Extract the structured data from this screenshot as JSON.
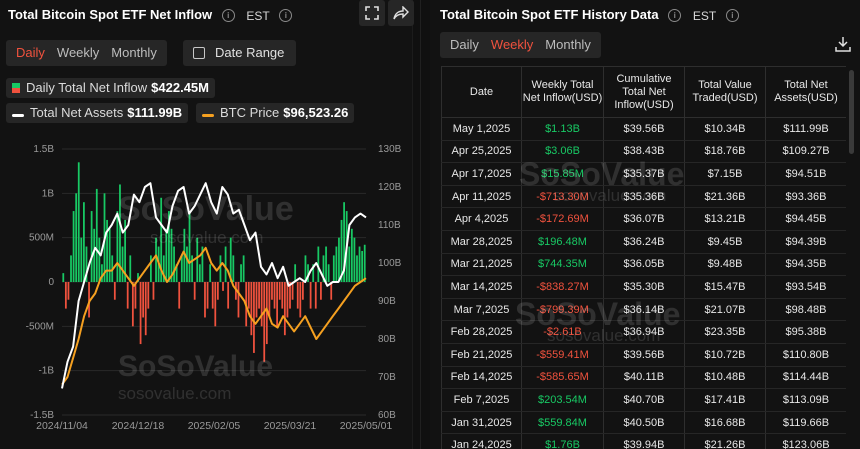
{
  "left": {
    "title": "Total Bitcoin Spot ETF Net Inflow",
    "timezone": "EST",
    "tabs": [
      "Daily",
      "Weekly",
      "Monthly"
    ],
    "active_tab": "Daily",
    "date_range_label": "Date Range",
    "legend": {
      "inflow_label": "Daily Total Net Inflow",
      "inflow_value": "$422.45M",
      "assets_label": "Total Net Assets",
      "assets_value": "$111.99B",
      "btc_label": "BTC Price",
      "btc_value": "$96,523.26"
    },
    "icons": [
      "expand-icon",
      "share-icon",
      "info-icon"
    ]
  },
  "right": {
    "title": "Total Bitcoin Spot ETF History Data",
    "timezone": "EST",
    "tabs": [
      "Daily",
      "Weekly",
      "Monthly"
    ],
    "active_tab": "Weekly",
    "headers": [
      "Date",
      "Weekly Total Net Inflow(USD)",
      "Cumulative Total Net Inflow(USD)",
      "Total Value Traded(USD)",
      "Total Net Assets(USD)"
    ],
    "rows": [
      {
        "date": "May 1,2025",
        "inflow": "$1.13B",
        "sign": "pos",
        "cumulative": "$39.56B",
        "traded": "$10.34B",
        "assets": "$111.99B"
      },
      {
        "date": "Apr 25,2025",
        "inflow": "$3.06B",
        "sign": "pos",
        "cumulative": "$38.43B",
        "traded": "$18.76B",
        "assets": "$109.27B"
      },
      {
        "date": "Apr 17,2025",
        "inflow": "$15.85M",
        "sign": "pos",
        "cumulative": "$35.37B",
        "traded": "$7.15B",
        "assets": "$94.51B"
      },
      {
        "date": "Apr 11,2025",
        "inflow": "-$713.30M",
        "sign": "neg",
        "cumulative": "$35.36B",
        "traded": "$21.36B",
        "assets": "$93.36B"
      },
      {
        "date": "Apr 4,2025",
        "inflow": "-$172.69M",
        "sign": "neg",
        "cumulative": "$36.07B",
        "traded": "$13.21B",
        "assets": "$94.45B"
      },
      {
        "date": "Mar 28,2025",
        "inflow": "$196.48M",
        "sign": "pos",
        "cumulative": "$36.24B",
        "traded": "$9.45B",
        "assets": "$94.39B"
      },
      {
        "date": "Mar 21,2025",
        "inflow": "$744.35M",
        "sign": "pos",
        "cumulative": "$36.05B",
        "traded": "$9.48B",
        "assets": "$94.35B"
      },
      {
        "date": "Mar 14,2025",
        "inflow": "-$838.27M",
        "sign": "neg",
        "cumulative": "$35.30B",
        "traded": "$15.47B",
        "assets": "$93.54B"
      },
      {
        "date": "Mar 7,2025",
        "inflow": "-$799.39M",
        "sign": "neg",
        "cumulative": "$36.14B",
        "traded": "$21.07B",
        "assets": "$98.48B"
      },
      {
        "date": "Feb 28,2025",
        "inflow": "-$2.61B",
        "sign": "neg",
        "cumulative": "$36.94B",
        "traded": "$23.35B",
        "assets": "$95.38B"
      },
      {
        "date": "Feb 21,2025",
        "inflow": "-$559.41M",
        "sign": "neg",
        "cumulative": "$39.56B",
        "traded": "$10.72B",
        "assets": "$110.80B"
      },
      {
        "date": "Feb 14,2025",
        "inflow": "-$585.65M",
        "sign": "neg",
        "cumulative": "$40.11B",
        "traded": "$10.48B",
        "assets": "$114.44B"
      },
      {
        "date": "Feb 7,2025",
        "inflow": "$203.54M",
        "sign": "pos",
        "cumulative": "$40.70B",
        "traded": "$17.41B",
        "assets": "$113.09B"
      },
      {
        "date": "Jan 31,2025",
        "inflow": "$559.84M",
        "sign": "pos",
        "cumulative": "$40.50B",
        "traded": "$16.68B",
        "assets": "$119.66B"
      },
      {
        "date": "Jan 24,2025",
        "inflow": "$1.76B",
        "sign": "pos",
        "cumulative": "$39.94B",
        "traded": "$21.26B",
        "assets": "$123.06B"
      }
    ]
  },
  "watermark": {
    "brand": "SoSoValue",
    "site": "sosovalue.com"
  },
  "colors": {
    "positive": "#18c964",
    "negative": "#f0523e",
    "assets_line": "#ffffff",
    "btc_line": "#f5a020",
    "accent": "#f0523e"
  },
  "chart_data": {
    "type": "bar",
    "title": "Total Bitcoin Spot ETF Net Inflow",
    "x_ticks": [
      "2024/11/04",
      "2024/12/18",
      "2025/02/05",
      "2025/03/21",
      "2025/05/01"
    ],
    "y_left_ticks": [
      "1.5B",
      "1B",
      "500M",
      "0",
      "-500M",
      "-1B",
      "-1.5B"
    ],
    "y_right_ticks": [
      "130B",
      "120B",
      "110B",
      "100B",
      "90B",
      "80B",
      "70B",
      "60B"
    ],
    "ylim_left": [
      -1.5,
      1.5
    ],
    "ylim_right": [
      60,
      130
    ],
    "inflow_values": [
      0.1,
      -0.3,
      -0.2,
      0.3,
      0.8,
      1.0,
      1.35,
      0.5,
      0.9,
      0.4,
      -0.4,
      0.8,
      0.6,
      1.05,
      0.5,
      0.2,
      1.0,
      0.7,
      0.6,
      0.3,
      -0.2,
      0.8,
      1.1,
      0.4,
      0.7,
      -0.3,
      0.3,
      -0.5,
      -0.3,
      0.1,
      -0.7,
      -0.4,
      -0.6,
      -0.3,
      0.3,
      -0.2,
      0.5,
      0.4,
      0.95,
      0.3,
      0.6,
      0.8,
      0.6,
      0.4,
      0.2,
      -0.3,
      0.3,
      0.6,
      0.4,
      0.8,
      0.3,
      -0.2,
      0.5,
      0.2,
      0.4,
      -0.4,
      -0.3,
      0.2,
      -0.3,
      -0.5,
      -0.2,
      0.3,
      -0.1,
      0.4,
      -0.3,
      0.5,
      0.3,
      -0.2,
      -0.4,
      0.2,
      0.3,
      -0.5,
      -0.3,
      -0.6,
      -0.8,
      -0.4,
      -0.3,
      -0.5,
      -0.9,
      -0.7,
      -0.4,
      -0.2,
      -0.3,
      -0.5,
      -0.2,
      -0.3,
      -0.6,
      -0.4,
      -0.3,
      -0.2,
      0.2,
      -0.3,
      -0.4,
      -0.2,
      0.3,
      0.2,
      -0.3,
      0.2,
      -0.3,
      0.4,
      -0.2,
      0.3,
      0.4,
      0.2,
      -0.2,
      0.3,
      0.4,
      0.5,
      0.7,
      0.9,
      0.8,
      0.4,
      0.6,
      0.5,
      0.3,
      0.4,
      0.35,
      0.42
    ],
    "total_net_assets": [
      67,
      74,
      78,
      90,
      95,
      100,
      104,
      102,
      108,
      110,
      113,
      108,
      110,
      118,
      116,
      120,
      121,
      112,
      110,
      108,
      115,
      119,
      120,
      113,
      115,
      118,
      121,
      116,
      113,
      120,
      118,
      113,
      114,
      110,
      106,
      108,
      99,
      97,
      100,
      96,
      99,
      94,
      95,
      96,
      95,
      98,
      100,
      97,
      94,
      95,
      95,
      98,
      110,
      112,
      113,
      112
    ],
    "btc_price": [
      68,
      70,
      75,
      80,
      86,
      90,
      92,
      96,
      98,
      98,
      100,
      98,
      96,
      94,
      96,
      98,
      100,
      102,
      98,
      95,
      97,
      100,
      103,
      100,
      101,
      102,
      104,
      100,
      98,
      100,
      98,
      94,
      92,
      90,
      86,
      84,
      86,
      88,
      84,
      83,
      86,
      84,
      82,
      84,
      86,
      83,
      80,
      82,
      84,
      86,
      88,
      90,
      92,
      94,
      95,
      96
    ]
  }
}
